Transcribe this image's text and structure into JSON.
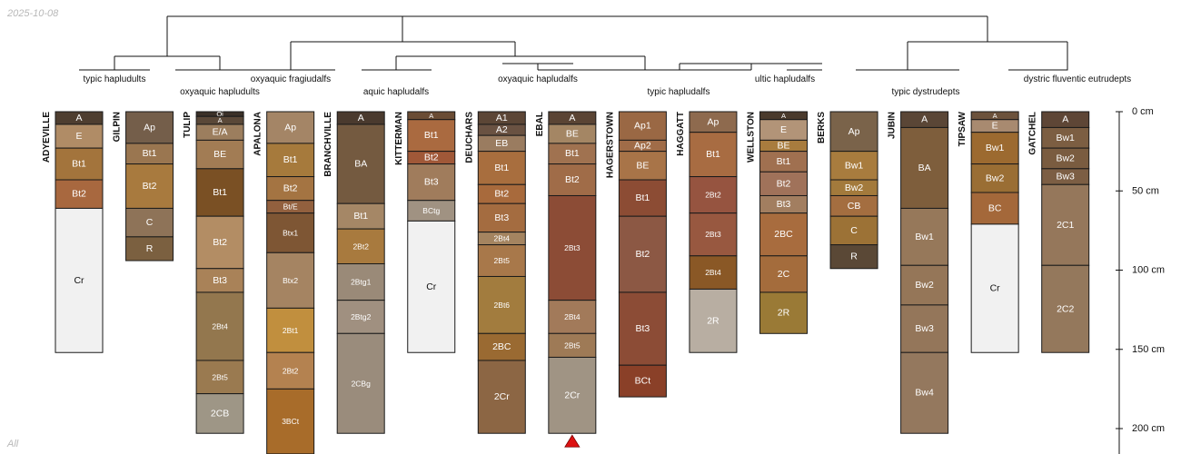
{
  "header": {
    "date": "2025-10-08"
  },
  "footer": {
    "label": "All"
  },
  "taxa": [
    "typic hapludults",
    "oxyaquic hapludults",
    "oxyaquic fragiudalfs",
    "aquic hapludalfs",
    "oxyaquic hapludalfs",
    "typic hapludalfs",
    "ultic hapludalfs",
    "typic dystrudepts",
    "dystric fluventic eutrudepts"
  ],
  "depth_axis": {
    "unit": "cm",
    "ticks": [
      {
        "value": 0,
        "label": "0 cm"
      },
      {
        "value": 50,
        "label": "50 cm"
      },
      {
        "value": 100,
        "label": "100 cm"
      },
      {
        "value": 150,
        "label": "150 cm"
      },
      {
        "value": 200,
        "label": "200 cm"
      }
    ],
    "max": 216
  },
  "marker": {
    "profile": "EBAL",
    "symbol": "red-triangle",
    "color": "#dd1111"
  },
  "profiles": [
    {
      "name": "ADYEVILLE",
      "horizons": [
        {
          "name": "A",
          "top": 0,
          "bottom": 8,
          "color": "#4e3e30"
        },
        {
          "name": "E",
          "top": 8,
          "bottom": 23,
          "color": "#b08c66"
        },
        {
          "name": "Bt1",
          "top": 23,
          "bottom": 43,
          "color": "#a3743c"
        },
        {
          "name": "Bt2",
          "top": 43,
          "bottom": 61,
          "color": "#a8683f"
        },
        {
          "name": "Cr",
          "top": 61,
          "bottom": 152,
          "color": "#f1f1f1"
        }
      ]
    },
    {
      "name": "GILPIN",
      "horizons": [
        {
          "name": "Ap",
          "top": 0,
          "bottom": 20,
          "color": "#745e4a"
        },
        {
          "name": "Bt1",
          "top": 20,
          "bottom": 33,
          "color": "#9a7650"
        },
        {
          "name": "Bt2",
          "top": 33,
          "bottom": 61,
          "color": "#a87a3e"
        },
        {
          "name": "C",
          "top": 61,
          "bottom": 79,
          "color": "#8e7358"
        },
        {
          "name": "R",
          "top": 79,
          "bottom": 94,
          "color": "#7b6040"
        }
      ]
    },
    {
      "name": "TULIP",
      "horizons": [
        {
          "name": "Oi",
          "top": 0,
          "bottom": 3,
          "color": "#3b3028"
        },
        {
          "name": "A",
          "top": 3,
          "bottom": 8,
          "color": "#5a4838"
        },
        {
          "name": "E/A",
          "top": 8,
          "bottom": 18,
          "color": "#9c7e5e"
        },
        {
          "name": "BE",
          "top": 18,
          "bottom": 36,
          "color": "#a27c54"
        },
        {
          "name": "Bt1",
          "top": 36,
          "bottom": 66,
          "color": "#7a5024"
        },
        {
          "name": "Bt2",
          "top": 66,
          "bottom": 99,
          "color": "#b38d64"
        },
        {
          "name": "Bt3",
          "top": 99,
          "bottom": 114,
          "color": "#a98258"
        },
        {
          "name": "2Bt4",
          "top": 114,
          "bottom": 157,
          "color": "#93774e"
        },
        {
          "name": "2Bt5",
          "top": 157,
          "bottom": 178,
          "color": "#9a7a50"
        },
        {
          "name": "2CB",
          "top": 178,
          "bottom": 203,
          "color": "#9e9686"
        }
      ]
    },
    {
      "name": "APALONA",
      "horizons": [
        {
          "name": "Ap",
          "top": 0,
          "bottom": 20,
          "color": "#a48566"
        },
        {
          "name": "Bt1",
          "top": 20,
          "bottom": 41,
          "color": "#a67a3c"
        },
        {
          "name": "Bt2",
          "top": 41,
          "bottom": 56,
          "color": "#a47442"
        },
        {
          "name": "Bt/E",
          "top": 56,
          "bottom": 64,
          "color": "#92603e"
        },
        {
          "name": "Btx1",
          "top": 64,
          "bottom": 89,
          "color": "#7e5634"
        },
        {
          "name": "Btx2",
          "top": 89,
          "bottom": 124,
          "color": "#a58462"
        },
        {
          "name": "2Bt1",
          "top": 124,
          "bottom": 152,
          "color": "#c18f3e"
        },
        {
          "name": "2Bt2",
          "top": 152,
          "bottom": 175,
          "color": "#b48250"
        },
        {
          "name": "3BCt",
          "top": 175,
          "bottom": 216,
          "color": "#a86c2a"
        }
      ]
    },
    {
      "name": "BRANCHVILLE",
      "horizons": [
        {
          "name": "A",
          "top": 0,
          "bottom": 8,
          "color": "#4a3a2e"
        },
        {
          "name": "BA",
          "top": 8,
          "bottom": 58,
          "color": "#745a40"
        },
        {
          "name": "Bt1",
          "top": 58,
          "bottom": 74,
          "color": "#a58766"
        },
        {
          "name": "2Bt2",
          "top": 74,
          "bottom": 96,
          "color": "#a87a3e"
        },
        {
          "name": "2Btg1",
          "top": 96,
          "bottom": 119,
          "color": "#9a8a78"
        },
        {
          "name": "2Btg2",
          "top": 119,
          "bottom": 140,
          "color": "#a09080"
        },
        {
          "name": "2CBg",
          "top": 140,
          "bottom": 203,
          "color": "#9a8c7c"
        }
      ]
    },
    {
      "name": "KITTERMAN",
      "horizons": [
        {
          "name": "A",
          "top": 0,
          "bottom": 5,
          "color": "#6a4c34"
        },
        {
          "name": "Bt1",
          "top": 5,
          "bottom": 25,
          "color": "#aa6a40"
        },
        {
          "name": "Bt2",
          "top": 25,
          "bottom": 33,
          "color": "#a05838"
        },
        {
          "name": "Bt3",
          "top": 33,
          "bottom": 56,
          "color": "#a07c5c"
        },
        {
          "name": "BCtg",
          "top": 56,
          "bottom": 69,
          "color": "#a09282"
        },
        {
          "name": "Cr",
          "top": 69,
          "bottom": 152,
          "color": "#f1f1f1"
        }
      ]
    },
    {
      "name": "DEUCHARS",
      "horizons": [
        {
          "name": "A1",
          "top": 0,
          "bottom": 8,
          "color": "#5c4636"
        },
        {
          "name": "A2",
          "top": 8,
          "bottom": 15,
          "color": "#6a5242"
        },
        {
          "name": "EB",
          "top": 15,
          "bottom": 25,
          "color": "#9a7c60"
        },
        {
          "name": "Bt1",
          "top": 25,
          "bottom": 46,
          "color": "#a86e3e"
        },
        {
          "name": "Bt2",
          "top": 46,
          "bottom": 58,
          "color": "#a86a3c"
        },
        {
          "name": "Bt3",
          "top": 58,
          "bottom": 76,
          "color": "#a46c40"
        },
        {
          "name": "2Bt4",
          "top": 76,
          "bottom": 84,
          "color": "#a48460"
        },
        {
          "name": "2Bt5",
          "top": 84,
          "bottom": 104,
          "color": "#a8784a"
        },
        {
          "name": "2Bt6",
          "top": 104,
          "bottom": 140,
          "color": "#a27c3e"
        },
        {
          "name": "2BC",
          "top": 140,
          "bottom": 157,
          "color": "#9a6a32"
        },
        {
          "name": "2Cr",
          "top": 157,
          "bottom": 203,
          "color": "#8c6644"
        }
      ]
    },
    {
      "name": "EBAL",
      "horizons": [
        {
          "name": "A",
          "top": 0,
          "bottom": 8,
          "color": "#5a4434"
        },
        {
          "name": "BE",
          "top": 8,
          "bottom": 20,
          "color": "#a48664"
        },
        {
          "name": "Bt1",
          "top": 20,
          "bottom": 33,
          "color": "#a07250"
        },
        {
          "name": "Bt2",
          "top": 33,
          "bottom": 53,
          "color": "#a06c48"
        },
        {
          "name": "2Bt3",
          "top": 53,
          "bottom": 119,
          "color": "#8c4c36"
        },
        {
          "name": "2Bt4",
          "top": 119,
          "bottom": 140,
          "color": "#a27a5a"
        },
        {
          "name": "2Bt5",
          "top": 140,
          "bottom": 155,
          "color": "#9e7a56"
        },
        {
          "name": "2Cr",
          "top": 155,
          "bottom": 203,
          "color": "#a09484"
        }
      ]
    },
    {
      "name": "HAGERSTOWN",
      "horizons": [
        {
          "name": "Ap1",
          "top": 0,
          "bottom": 18,
          "color": "#9a6844"
        },
        {
          "name": "Ap2",
          "top": 18,
          "bottom": 25,
          "color": "#a06c48"
        },
        {
          "name": "BE",
          "top": 25,
          "bottom": 43,
          "color": "#a87448"
        },
        {
          "name": "Bt1",
          "top": 43,
          "bottom": 66,
          "color": "#8c4c34"
        },
        {
          "name": "Bt2",
          "top": 66,
          "bottom": 114,
          "color": "#8c5844"
        },
        {
          "name": "Bt3",
          "top": 114,
          "bottom": 160,
          "color": "#8c4c36"
        },
        {
          "name": "BCt",
          "top": 160,
          "bottom": 180,
          "color": "#8a4028"
        }
      ]
    },
    {
      "name": "HAGGATT",
      "horizons": [
        {
          "name": "Ap",
          "top": 0,
          "bottom": 13,
          "color": "#8e6a4e"
        },
        {
          "name": "Bt1",
          "top": 13,
          "bottom": 41,
          "color": "#a86c42"
        },
        {
          "name": "2Bt2",
          "top": 41,
          "bottom": 64,
          "color": "#965440"
        },
        {
          "name": "2Bt3",
          "top": 64,
          "bottom": 91,
          "color": "#985840"
        },
        {
          "name": "2Bt4",
          "top": 91,
          "bottom": 112,
          "color": "#8a5826"
        },
        {
          "name": "2R",
          "top": 112,
          "bottom": 152,
          "color": "#b8aea2"
        }
      ]
    },
    {
      "name": "WELLSTON",
      "horizons": [
        {
          "name": "A",
          "top": 0,
          "bottom": 5,
          "color": "#4a3a2c"
        },
        {
          "name": "E",
          "top": 5,
          "bottom": 18,
          "color": "#b29478"
        },
        {
          "name": "BE",
          "top": 18,
          "bottom": 25,
          "color": "#a87c3e"
        },
        {
          "name": "Bt1",
          "top": 25,
          "bottom": 38,
          "color": "#a07050"
        },
        {
          "name": "Bt2",
          "top": 38,
          "bottom": 53,
          "color": "#a0725a"
        },
        {
          "name": "Bt3",
          "top": 53,
          "bottom": 64,
          "color": "#a27e60"
        },
        {
          "name": "2BC",
          "top": 64,
          "bottom": 91,
          "color": "#a86c3e"
        },
        {
          "name": "2C",
          "top": 91,
          "bottom": 114,
          "color": "#a46c3c"
        },
        {
          "name": "2R",
          "top": 114,
          "bottom": 140,
          "color": "#9a7a36"
        }
      ]
    },
    {
      "name": "BERKS",
      "horizons": [
        {
          "name": "Ap",
          "top": 0,
          "bottom": 25,
          "color": "#7a634a"
        },
        {
          "name": "Bw1",
          "top": 25,
          "bottom": 43,
          "color": "#a87c3e"
        },
        {
          "name": "Bw2",
          "top": 43,
          "bottom": 53,
          "color": "#a37a3c"
        },
        {
          "name": "CB",
          "top": 53,
          "bottom": 66,
          "color": "#a46e40"
        },
        {
          "name": "C",
          "top": 66,
          "bottom": 84,
          "color": "#9c7236"
        },
        {
          "name": "R",
          "top": 84,
          "bottom": 99,
          "color": "#5a4836"
        }
      ]
    },
    {
      "name": "JUBIN",
      "horizons": [
        {
          "name": "A",
          "top": 0,
          "bottom": 10,
          "color": "#5a4636"
        },
        {
          "name": "BA",
          "top": 10,
          "bottom": 61,
          "color": "#7e5e3c"
        },
        {
          "name": "Bw1",
          "top": 61,
          "bottom": 97,
          "color": "#96785a"
        },
        {
          "name": "Bw2",
          "top": 97,
          "bottom": 122,
          "color": "#957658"
        },
        {
          "name": "Bw3",
          "top": 122,
          "bottom": 152,
          "color": "#94765a"
        },
        {
          "name": "Bw4",
          "top": 152,
          "bottom": 203,
          "color": "#94785e"
        }
      ]
    },
    {
      "name": "TIPSAW",
      "horizons": [
        {
          "name": "A",
          "top": 0,
          "bottom": 5,
          "color": "#6c523c"
        },
        {
          "name": "E",
          "top": 5,
          "bottom": 13,
          "color": "#a88a70"
        },
        {
          "name": "Bw1",
          "top": 13,
          "bottom": 33,
          "color": "#9c6a30"
        },
        {
          "name": "Bw2",
          "top": 33,
          "bottom": 51,
          "color": "#9a6e34"
        },
        {
          "name": "BC",
          "top": 51,
          "bottom": 71,
          "color": "#a4683a"
        },
        {
          "name": "Cr",
          "top": 71,
          "bottom": 152,
          "color": "#f1f1f1"
        }
      ]
    },
    {
      "name": "GATCHEL",
      "horizons": [
        {
          "name": "A",
          "top": 0,
          "bottom": 10,
          "color": "#5e4636"
        },
        {
          "name": "Bw1",
          "top": 10,
          "bottom": 23,
          "color": "#7c5e42"
        },
        {
          "name": "Bw2",
          "top": 23,
          "bottom": 36,
          "color": "#7a5c40"
        },
        {
          "name": "Bw3",
          "top": 36,
          "bottom": 46,
          "color": "#7c5e44"
        },
        {
          "name": "2C1",
          "top": 46,
          "bottom": 97,
          "color": "#95775b"
        },
        {
          "name": "2C2",
          "top": 97,
          "bottom": 152,
          "color": "#94785c"
        }
      ]
    }
  ]
}
